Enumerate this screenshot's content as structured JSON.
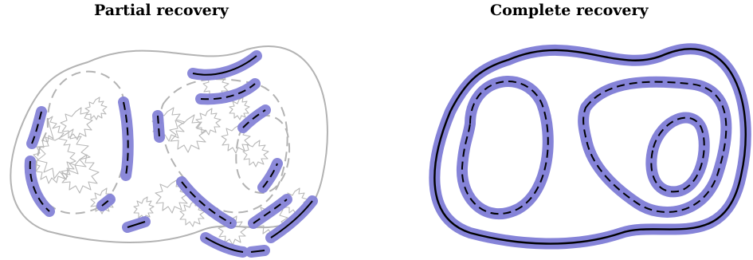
{
  "panels": [
    {
      "title": "Partial recovery"
    },
    {
      "title": "Complete recovery"
    }
  ],
  "colors": {
    "highlight": "#8583d8",
    "true_curve": "#000000",
    "faint_curve": "#b3b3b3",
    "random_walk": "#b8b8b8"
  }
}
